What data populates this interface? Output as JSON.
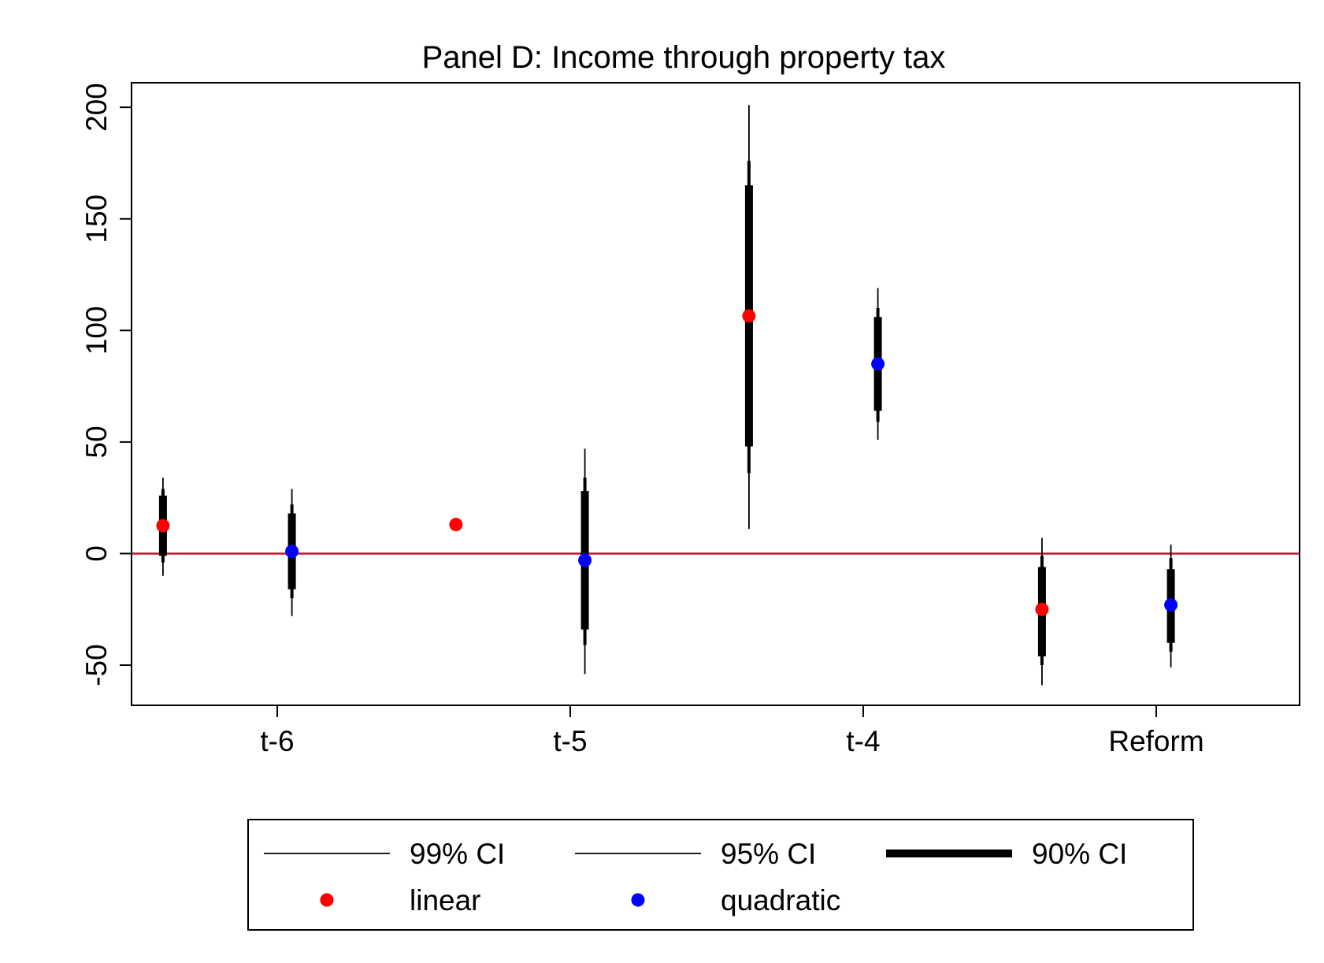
{
  "chart_data": {
    "type": "scatter",
    "title": "Panel D: Income through property tax",
    "xlabel": "",
    "ylabel": "",
    "categories": [
      "t-6",
      "t-5",
      "t-4",
      "Reform"
    ],
    "ylim": [
      -68,
      211
    ],
    "yticks": [
      -50,
      0,
      50,
      100,
      150,
      200
    ],
    "grid": false,
    "reference_line": {
      "y": 0,
      "color": "#c8102e"
    },
    "offsets": {
      "linear": -0.39,
      "quadratic": 0.05
    },
    "series": [
      {
        "name": "linear",
        "color": "#ff0000",
        "points": [
          {
            "category": "t-6",
            "estimate": 12.5,
            "ci90": [
              -1,
              26
            ],
            "ci95": [
              -4,
              29
            ],
            "ci99": [
              -10,
              34
            ]
          },
          {
            "category": "t-5",
            "estimate": 13,
            "ci90": [
              11,
              15
            ],
            "ci95": [
              10.5,
              15.5
            ],
            "ci99": [
              10,
              16
            ]
          },
          {
            "category": "t-4",
            "estimate": 106.5,
            "ci90": [
              48,
              165
            ],
            "ci95": [
              36,
              176
            ],
            "ci99": [
              11,
              201
            ]
          },
          {
            "category": "Reform",
            "estimate": -25,
            "ci90": [
              -46,
              -6
            ],
            "ci95": [
              -50,
              -1
            ],
            "ci99": [
              -59,
              7
            ]
          }
        ]
      },
      {
        "name": "quadratic",
        "color": "#0000ff",
        "points": [
          {
            "category": "t-6",
            "estimate": 1,
            "ci90": [
              -16,
              18
            ],
            "ci95": [
              -20,
              22
            ],
            "ci99": [
              -28,
              29
            ]
          },
          {
            "category": "t-5",
            "estimate": -3,
            "ci90": [
              -34,
              28
            ],
            "ci95": [
              -41,
              34
            ],
            "ci99": [
              -54,
              47
            ]
          },
          {
            "category": "t-4",
            "estimate": 85,
            "ci90": [
              64,
              106
            ],
            "ci95": [
              59,
              110
            ],
            "ci99": [
              51,
              119
            ]
          },
          {
            "category": "Reform",
            "estimate": -23,
            "ci90": [
              -40,
              -7
            ],
            "ci95": [
              -44,
              -2
            ],
            "ci99": [
              -51,
              4
            ]
          }
        ]
      }
    ],
    "legend": {
      "placement": "bottom",
      "entries": [
        {
          "label": "99% CI",
          "kind": "line",
          "stroke": "thin"
        },
        {
          "label": "95% CI",
          "kind": "line",
          "stroke": "thin"
        },
        {
          "label": "90% CI",
          "kind": "line",
          "stroke": "thick"
        },
        {
          "label": "linear",
          "kind": "marker",
          "color": "#ff0000"
        },
        {
          "label": "quadratic",
          "kind": "marker",
          "color": "#0000ff"
        }
      ]
    }
  }
}
